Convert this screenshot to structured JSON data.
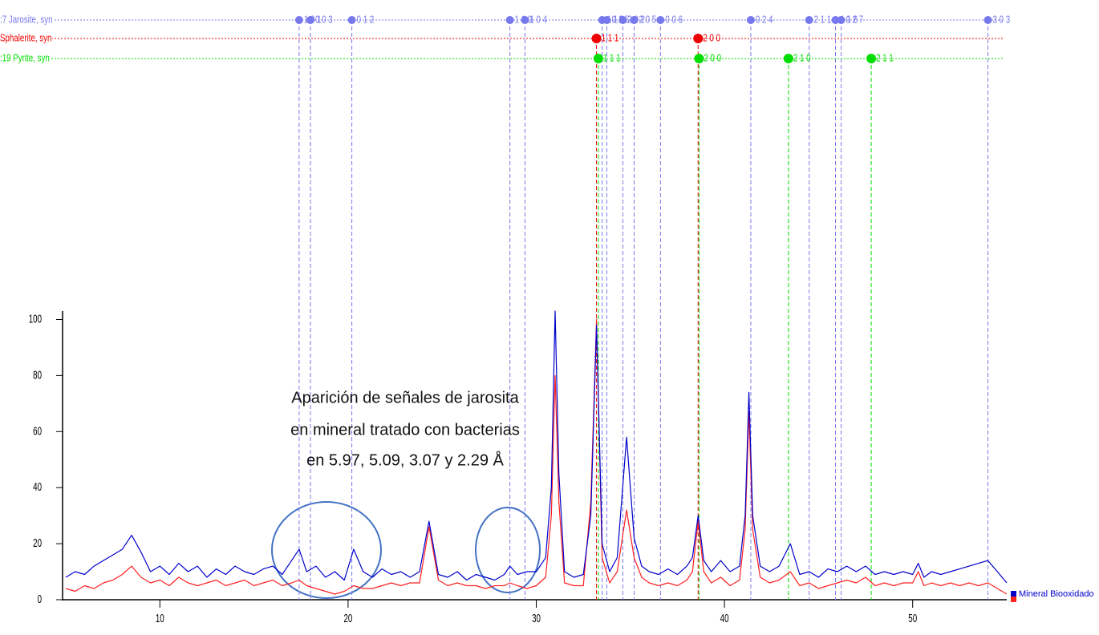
{
  "chart_data": {
    "type": "line",
    "x": [
      5,
      5.5,
      6,
      6.5,
      7,
      7.5,
      8,
      8.5,
      9,
      9.5,
      10,
      10.5,
      11,
      11.5,
      12,
      12.5,
      13,
      13.5,
      14,
      14.5,
      15,
      15.5,
      16,
      16.5,
      17,
      17.4,
      17.8,
      18.3,
      18.8,
      19.3,
      19.8,
      20.3,
      20.8,
      21.3,
      21.8,
      22.3,
      22.8,
      23.3,
      23.8,
      24.3,
      24.8,
      25.3,
      25.8,
      26.3,
      26.8,
      27.3,
      27.8,
      28.3,
      28.6,
      29,
      29.5,
      30,
      30.5,
      30.8,
      31,
      31.2,
      31.5,
      32,
      32.5,
      32.9,
      33.2,
      33.5,
      33.9,
      34.3,
      34.8,
      35.2,
      35.6,
      36,
      36.5,
      37,
      37.5,
      38,
      38.3,
      38.6,
      38.9,
      39.3,
      39.8,
      40.3,
      40.8,
      41.1,
      41.3,
      41.5,
      41.9,
      42.4,
      42.9,
      43.5,
      44,
      44.5,
      45,
      45.5,
      46,
      46.5,
      47,
      47.5,
      48,
      48.5,
      49,
      49.5,
      50,
      50.3,
      50.6,
      51,
      51.5,
      52,
      52.5,
      53,
      53.5,
      54,
      54.5,
      55
    ],
    "series": [
      {
        "name": "Mineral Biooxidado",
        "color": "#0000cc",
        "values": [
          8,
          10,
          9,
          12,
          14,
          16,
          18,
          23,
          17,
          10,
          12,
          9,
          13,
          10,
          12,
          8,
          11,
          9,
          12,
          10,
          9,
          11,
          12,
          9,
          14,
          18,
          10,
          12,
          8,
          10,
          7,
          18,
          10,
          8,
          11,
          9,
          10,
          8,
          10,
          28,
          9,
          8,
          10,
          7,
          9,
          8,
          7,
          9,
          12,
          9,
          10,
          10,
          15,
          40,
          103,
          45,
          10,
          8,
          9,
          30,
          98,
          20,
          10,
          15,
          58,
          22,
          12,
          10,
          9,
          11,
          9,
          12,
          15,
          30,
          14,
          10,
          14,
          10,
          12,
          30,
          74,
          30,
          12,
          10,
          12,
          20,
          9,
          10,
          8,
          11,
          10,
          12,
          10,
          12,
          9,
          10,
          9,
          10,
          9,
          13,
          8,
          10,
          9,
          10,
          11,
          12,
          13,
          14,
          10,
          6
        ]
      },
      {
        "color": "#ff2020",
        "values": [
          4,
          3,
          5,
          4,
          6,
          7,
          9,
          12,
          8,
          6,
          7,
          5,
          8,
          6,
          5,
          6,
          7,
          5,
          6,
          7,
          5,
          6,
          7,
          5,
          6,
          7,
          5,
          4,
          3,
          2,
          3,
          5,
          4,
          4,
          5,
          6,
          5,
          6,
          6,
          26,
          7,
          5,
          6,
          5,
          5,
          4,
          5,
          5,
          6,
          5,
          4,
          5,
          8,
          30,
          80,
          35,
          6,
          5,
          5,
          35,
          100,
          15,
          6,
          10,
          32,
          15,
          8,
          6,
          5,
          6,
          5,
          7,
          10,
          28,
          10,
          6,
          8,
          5,
          7,
          25,
          67,
          25,
          8,
          6,
          7,
          10,
          5,
          6,
          4,
          5,
          6,
          7,
          6,
          8,
          5,
          6,
          5,
          6,
          6,
          10,
          5,
          6,
          5,
          6,
          5,
          6,
          5,
          6,
          4,
          2
        ]
      }
    ],
    "xlim": [
      5,
      55
    ],
    "xticks": [
      10,
      20,
      30,
      40,
      50
    ],
    "ylim": [
      0,
      103
    ],
    "yticks": [
      0,
      20,
      40,
      60,
      80,
      100
    ],
    "annotation": [
      "Aparición de señales de jarosita",
      "en mineral tratado con bacterias",
      "en 5.97, 5.09, 3.07 y 2.29 Å"
    ],
    "reference_patterns": [
      {
        "name": ":7 Jarosite, syn",
        "color": "#7777ee",
        "positions": [
          17.4,
          18.0,
          20.2,
          28.6,
          29.4,
          33.5,
          33.75,
          34.6,
          35.2,
          36.6,
          41.4,
          44.5,
          45.9,
          46.2,
          54.0
        ],
        "labels": [
          "1 0 1",
          "0 0 3",
          "0 1 2",
          "1 1 0",
          "1 0 4",
          "1 1 3",
          "0 1 5",
          "2 0 2",
          "2 0 5",
          "0 0 6",
          "0 2 4",
          "2 1 1",
          "1 1 6",
          "0 2 7",
          "3 0 3"
        ]
      },
      {
        "name": "Sphalerite, syn",
        "color": "#ee0000",
        "positions": [
          33.2,
          38.6
        ],
        "labels": [
          "1 1 1",
          "2 0 0"
        ]
      },
      {
        "name": ":19 Pyrite, syn",
        "color": "#00dd00",
        "positions": [
          33.3,
          38.65,
          43.4,
          47.8
        ],
        "labels": [
          "1 1 1",
          "2 0 0",
          "2 1 0",
          "2 1 1"
        ]
      }
    ]
  }
}
